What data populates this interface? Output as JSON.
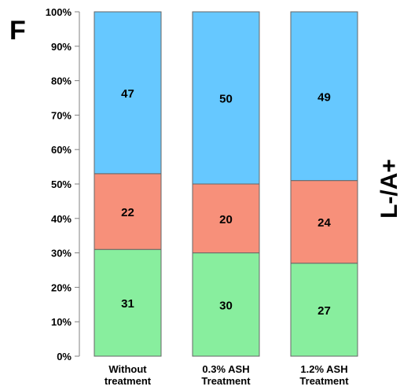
{
  "panel_letter": "F",
  "side_label": "L-/A+",
  "chart_data": {
    "type": "bar",
    "stacked": true,
    "categories": [
      [
        "Without",
        "treatment"
      ],
      [
        "0.3% ASH",
        "Treatment"
      ],
      [
        "1.2% ASH",
        "Treatment"
      ]
    ],
    "series": [
      {
        "values": [
          31,
          30,
          27
        ],
        "color": "#88ee9e"
      },
      {
        "values": [
          22,
          20,
          24
        ],
        "color": "#f7907a"
      },
      {
        "values": [
          47,
          50,
          49
        ],
        "color": "#66c8ff"
      }
    ],
    "ylim": [
      0,
      100
    ],
    "ytick_step": 10,
    "ytick_suffix": "%",
    "grid": false,
    "legend": "none"
  }
}
